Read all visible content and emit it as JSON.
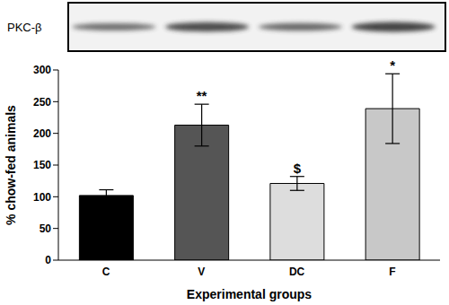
{
  "chart_data": {
    "type": "bar",
    "panel_label": "PKC-β",
    "categories": [
      "C",
      "V",
      "DC",
      "F"
    ],
    "values": [
      102,
      213,
      121,
      239
    ],
    "errors": [
      9,
      33,
      11,
      55
    ],
    "colors": [
      "#000000",
      "#555555",
      "#dddddd",
      "#c8c8c8"
    ],
    "annotations": [
      null,
      "**",
      "$",
      "*"
    ],
    "x_label": "Experimental groups",
    "y_label": "% chow-fed animals",
    "ylim": [
      0,
      300
    ],
    "yticks": [
      0,
      50,
      100,
      150,
      200,
      250,
      300
    ],
    "grid": false
  }
}
